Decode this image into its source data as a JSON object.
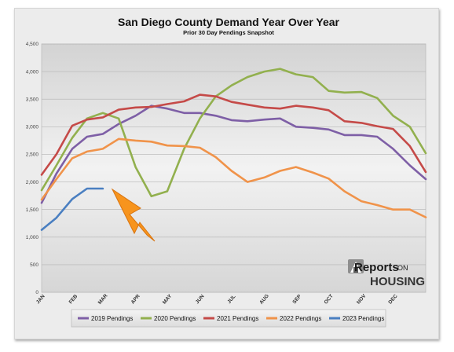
{
  "chart_data": {
    "type": "line",
    "title": "San Diego County Demand Year Over Year",
    "subtitle": "Prior 30 Day Pendings Snapshot",
    "xlabel": "",
    "ylabel": "",
    "ylim": [
      0,
      4500
    ],
    "yticks": [
      "0",
      "500",
      "1,000",
      "1,500",
      "2,000",
      "2,500",
      "3,000",
      "3,500",
      "4,000",
      "4,500"
    ],
    "x_ticks": [
      {
        "label": "JAN",
        "x": 1
      },
      {
        "label": "FEB",
        "x": 32
      },
      {
        "label": "MAR",
        "x": 60
      },
      {
        "label": "APR",
        "x": 91
      },
      {
        "label": "MAY",
        "x": 121
      },
      {
        "label": "JUN",
        "x": 152
      },
      {
        "label": "JUL",
        "x": 182
      },
      {
        "label": "AUG",
        "x": 213
      },
      {
        "label": "SEP",
        "x": 244
      },
      {
        "label": "OCT",
        "x": 274
      },
      {
        "label": "NOV",
        "x": 305
      },
      {
        "label": "DEC",
        "x": 335
      }
    ],
    "x_range": [
      1,
      365
    ],
    "grid": true,
    "legend_position": "bottom",
    "series": [
      {
        "name": "2019 Pendings",
        "color": "#7e5fa6",
        "x": [
          1,
          15,
          30,
          44,
          59,
          74,
          90,
          105,
          120,
          136,
          151,
          166,
          181,
          196,
          212,
          227,
          242,
          258,
          273,
          288,
          304,
          319,
          334,
          350,
          365
        ],
        "y": [
          1620,
          2150,
          2600,
          2820,
          2870,
          3050,
          3200,
          3380,
          3330,
          3250,
          3250,
          3200,
          3120,
          3100,
          3130,
          3150,
          3000,
          2980,
          2950,
          2850,
          2850,
          2820,
          2600,
          2300,
          2050
        ]
      },
      {
        "name": "2020 Pendings",
        "color": "#92b04e",
        "x": [
          1,
          15,
          30,
          44,
          59,
          74,
          90,
          105,
          120,
          136,
          151,
          166,
          181,
          196,
          212,
          227,
          242,
          258,
          273,
          288,
          304,
          319,
          334,
          350,
          365
        ],
        "y": [
          1850,
          2300,
          2800,
          3150,
          3250,
          3150,
          2270,
          1740,
          1830,
          2600,
          3150,
          3550,
          3750,
          3900,
          4000,
          4050,
          3950,
          3900,
          3650,
          3620,
          3630,
          3520,
          3200,
          3000,
          2520
        ]
      },
      {
        "name": "2021 Pendings",
        "color": "#c54a48",
        "x": [
          1,
          15,
          30,
          44,
          59,
          74,
          90,
          105,
          120,
          136,
          151,
          166,
          181,
          196,
          212,
          227,
          242,
          258,
          273,
          288,
          304,
          319,
          334,
          350,
          365
        ],
        "y": [
          2130,
          2500,
          3020,
          3130,
          3170,
          3310,
          3350,
          3360,
          3410,
          3460,
          3580,
          3550,
          3450,
          3400,
          3350,
          3330,
          3380,
          3350,
          3300,
          3100,
          3070,
          3010,
          2960,
          2650,
          2180
        ]
      },
      {
        "name": "2022 Pendings",
        "color": "#f0934a",
        "x": [
          1,
          15,
          30,
          44,
          59,
          74,
          90,
          105,
          120,
          136,
          151,
          166,
          181,
          196,
          212,
          227,
          242,
          258,
          273,
          288,
          304,
          319,
          334,
          350,
          365
        ],
        "y": [
          1680,
          2050,
          2430,
          2550,
          2600,
          2780,
          2750,
          2730,
          2660,
          2650,
          2620,
          2450,
          2200,
          2000,
          2080,
          2200,
          2270,
          2170,
          2060,
          1830,
          1650,
          1580,
          1500,
          1500,
          1360
        ]
      },
      {
        "name": "2023 Pendings",
        "color": "#4a7fc1",
        "x": [
          1,
          15,
          30,
          44,
          59
        ],
        "y": [
          1130,
          1350,
          1690,
          1880,
          1880
        ]
      }
    ]
  },
  "logo": {
    "reports": "Reports",
    "on": "ON",
    "housing": "HOUSING"
  }
}
